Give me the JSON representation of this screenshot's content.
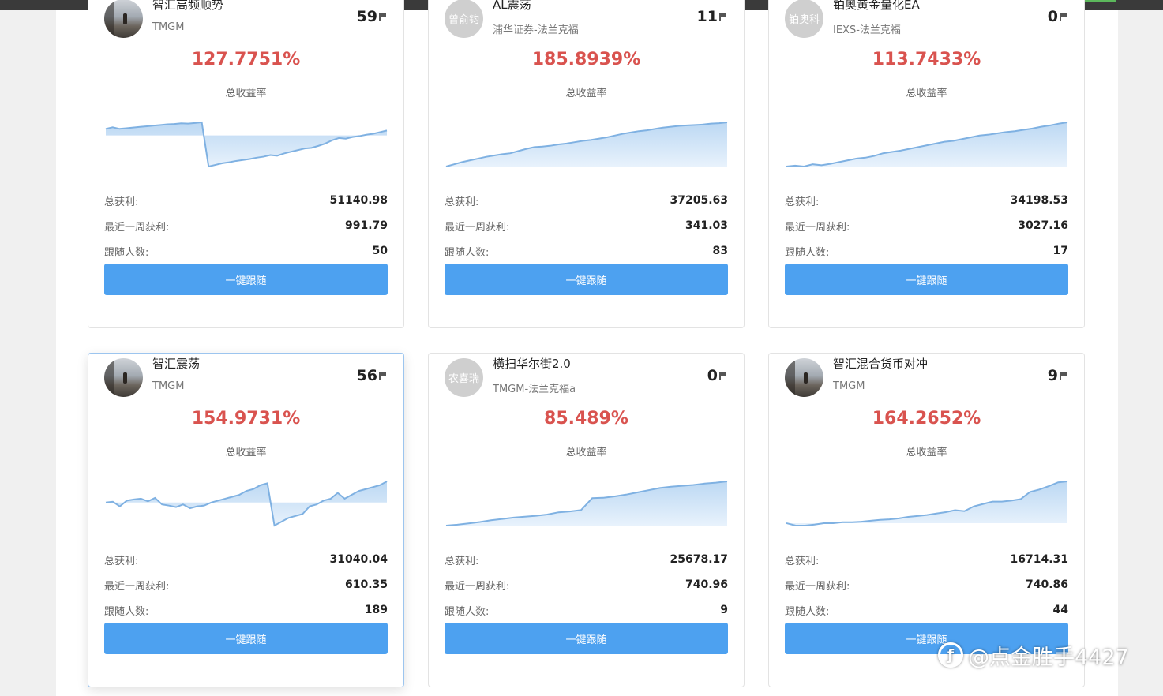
{
  "cards": [
    {
      "name": "智汇高频顺势",
      "broker": "TMGM",
      "avatar_text": "",
      "flag_count": "59",
      "rate": "127.7751%",
      "rate_label": "总收益率",
      "stats": [
        {
          "label": "总获利:",
          "value": "51140.98"
        },
        {
          "label": "最近一周获利:",
          "value": "991.79"
        },
        {
          "label": "跟随人数:",
          "value": "50"
        }
      ],
      "button_label": "一键跟随",
      "chart_data": {
        "type": "area",
        "baseline": -0.1,
        "values": [
          0.1,
          0.15,
          0.1,
          0.12,
          0.14,
          0.16,
          0.18,
          0.2,
          0.22,
          0.24,
          0.25,
          0.27,
          0.26,
          0.28,
          0.3,
          -1.05,
          -1.0,
          -0.95,
          -0.92,
          -0.88,
          -0.85,
          -0.82,
          -0.78,
          -0.75,
          -0.7,
          -0.72,
          -0.65,
          -0.6,
          -0.55,
          -0.5,
          -0.48,
          -0.42,
          -0.35,
          -0.25,
          -0.18,
          -0.2,
          -0.15,
          -0.12,
          -0.08,
          -0.05,
          0.0,
          0.05
        ]
      }
    },
    {
      "name": "AL震荡",
      "broker": "浦华证券-法兰克福",
      "avatar_text": "曾俞钧",
      "flag_count": "11",
      "rate": "185.8939%",
      "rate_label": "总收益率",
      "stats": [
        {
          "label": "总获利:",
          "value": "37205.63"
        },
        {
          "label": "最近一周获利:",
          "value": "341.03"
        },
        {
          "label": "跟随人数:",
          "value": "83"
        }
      ],
      "button_label": "一键跟随",
      "chart_data": {
        "type": "area",
        "baseline": 0,
        "values": [
          0,
          0.05,
          0.1,
          0.14,
          0.18,
          0.22,
          0.25,
          0.28,
          0.3,
          0.35,
          0.4,
          0.44,
          0.45,
          0.47,
          0.5,
          0.52,
          0.55,
          0.58,
          0.6,
          0.63,
          0.66,
          0.7,
          0.74,
          0.77,
          0.8,
          0.82,
          0.85,
          0.88,
          0.9,
          0.92,
          0.93,
          0.94,
          0.95,
          0.97,
          0.98,
          1.0
        ]
      }
    },
    {
      "name": "铂奥黄金量化EA",
      "broker": "IEXS-法兰克福",
      "avatar_text": "铂奥科",
      "flag_count": "0",
      "rate": "113.7433%",
      "rate_label": "总收益率",
      "stats": [
        {
          "label": "总获利:",
          "value": "34198.53"
        },
        {
          "label": "最近一周获利:",
          "value": "3027.16"
        },
        {
          "label": "跟随人数:",
          "value": "17"
        }
      ],
      "button_label": "一键跟随",
      "chart_data": {
        "type": "area",
        "baseline": 0,
        "values": [
          0,
          0.02,
          0.0,
          0.05,
          0.03,
          0.06,
          0.1,
          0.14,
          0.18,
          0.2,
          0.24,
          0.3,
          0.33,
          0.36,
          0.4,
          0.44,
          0.48,
          0.52,
          0.56,
          0.58,
          0.62,
          0.66,
          0.7,
          0.72,
          0.75,
          0.78,
          0.8,
          0.83,
          0.86,
          0.9,
          0.93,
          0.97,
          1.0
        ]
      }
    },
    {
      "name": "智汇震荡",
      "broker": "TMGM",
      "avatar_text": "",
      "flag_count": "56",
      "rate": "154.9731%",
      "rate_label": "总收益率",
      "stats": [
        {
          "label": "总获利:",
          "value": "31040.04"
        },
        {
          "label": "最近一周获利:",
          "value": "610.35"
        },
        {
          "label": "跟随人数:",
          "value": "189"
        }
      ],
      "button_label": "一键跟随",
      "chart_data": {
        "type": "area",
        "baseline": 0.0,
        "values": [
          0.0,
          0.02,
          -0.1,
          0.05,
          0.08,
          0.1,
          0.03,
          0.12,
          -0.05,
          -0.08,
          -0.12,
          -0.05,
          -0.15,
          -0.1,
          -0.08,
          0.0,
          0.05,
          0.1,
          0.15,
          0.2,
          0.3,
          0.35,
          0.45,
          0.5,
          -0.6,
          -0.5,
          -0.4,
          -0.35,
          -0.3,
          -0.1,
          -0.05,
          0.05,
          0.1,
          0.25,
          0.1,
          0.2,
          0.3,
          0.35,
          0.4,
          0.45,
          0.55
        ]
      }
    },
    {
      "name": "横扫华尔街2.0",
      "broker": "TMGM-法兰克福a",
      "avatar_text": "农喜瑞",
      "flag_count": "0",
      "rate": "85.489%",
      "rate_label": "总收益率",
      "stats": [
        {
          "label": "总获利:",
          "value": "25678.17"
        },
        {
          "label": "最近一周获利:",
          "value": "740.96"
        },
        {
          "label": "跟随人数:",
          "value": "9"
        }
      ],
      "button_label": "一键跟随",
      "chart_data": {
        "type": "area",
        "baseline": 0,
        "values": [
          0,
          0.02,
          0.05,
          0.08,
          0.12,
          0.15,
          0.18,
          0.2,
          0.22,
          0.25,
          0.3,
          0.32,
          0.35,
          0.62,
          0.63,
          0.66,
          0.7,
          0.75,
          0.8,
          0.85,
          0.88,
          0.9,
          0.92,
          0.95,
          0.97,
          1.0
        ]
      }
    },
    {
      "name": "智汇混合货币对冲",
      "broker": "TMGM",
      "avatar_text": "",
      "flag_count": "9",
      "rate": "164.2652%",
      "rate_label": "总收益率",
      "stats": [
        {
          "label": "总获利:",
          "value": "16714.31"
        },
        {
          "label": "最近一周获利:",
          "value": "740.86"
        },
        {
          "label": "跟随人数:",
          "value": "44"
        }
      ],
      "button_label": "一键跟随",
      "chart_data": {
        "type": "area",
        "baseline": 0.05,
        "values": [
          0.05,
          0.0,
          0.0,
          0.02,
          0.05,
          0.05,
          0.07,
          0.07,
          0.08,
          0.1,
          0.12,
          0.13,
          0.15,
          0.18,
          0.2,
          0.22,
          0.25,
          0.28,
          0.32,
          0.3,
          0.4,
          0.45,
          0.5,
          0.5,
          0.52,
          0.55,
          0.7,
          0.75,
          0.82,
          0.9,
          0.92
        ]
      }
    }
  ],
  "watermark": {
    "text": "@点金胜手4427",
    "icon_name": "broadcast-icon"
  }
}
